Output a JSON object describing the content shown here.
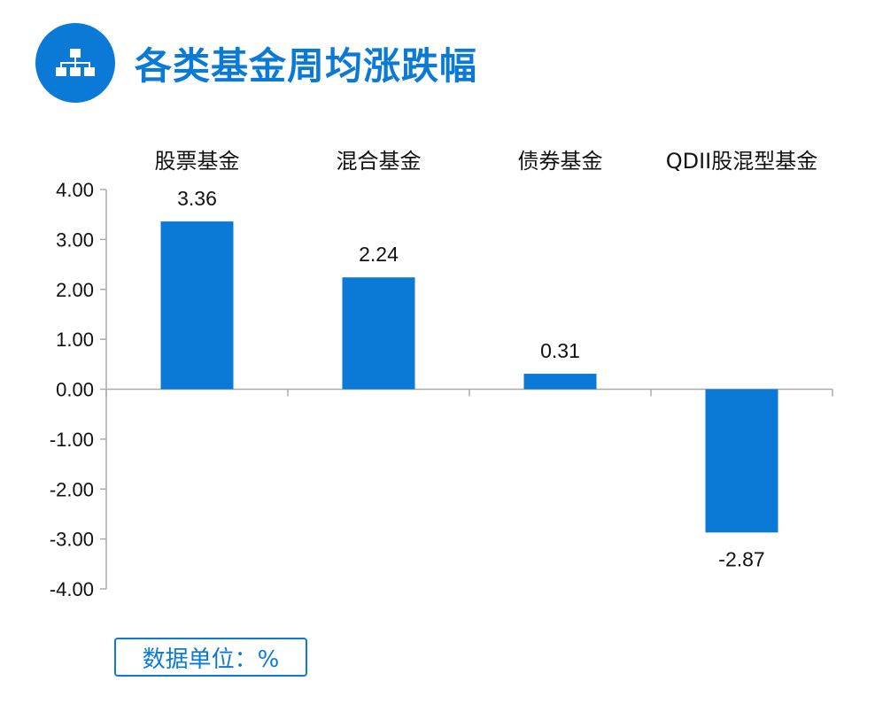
{
  "header": {
    "title": "各类基金周均涨跌幅",
    "icon": "hierarchy-icon"
  },
  "colors": {
    "accent": "#0b7ad6",
    "bar": "#0b7ad6",
    "axis": "#aaaaaa"
  },
  "unit_label": "数据单位：%",
  "chart_data": {
    "type": "bar",
    "title": "",
    "xlabel": "",
    "ylabel": "",
    "categories": [
      "股票基金",
      "混合基金",
      "债券基金",
      "QDII股混型基金"
    ],
    "values": [
      3.36,
      2.24,
      0.31,
      -2.87
    ],
    "value_labels": [
      "3.36",
      "2.24",
      "0.31",
      "-2.87"
    ],
    "ylim": [
      -4,
      4
    ],
    "yticks": [
      4,
      3,
      2,
      1,
      0,
      -1,
      -2,
      -3,
      -4
    ],
    "ytick_labels": [
      "4.00",
      "3.00",
      "2.00",
      "1.00",
      "0.00",
      "-1.00",
      "-2.00",
      "-3.00",
      "-4.00"
    ],
    "category_axis_position": "top",
    "grid": false,
    "legend": "none"
  }
}
